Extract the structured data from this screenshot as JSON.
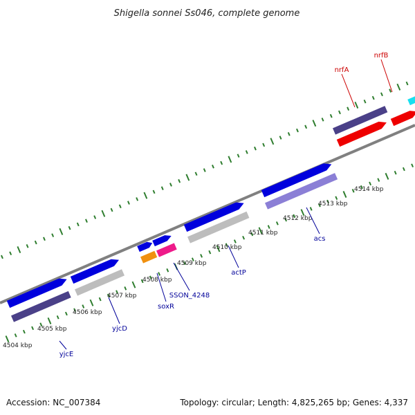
{
  "title": "Shigella sonnei Ss046, complete genome",
  "footer": {
    "accession": "Accession: NC_007384",
    "summary": "Topology: circular; Length: 4,825,265 bp; Genes: 4,337"
  },
  "colors": {
    "backbone": "#808080",
    "tick": "#2e7d2e",
    "label_forward": "#cc0000",
    "label_reverse": "#000099"
  },
  "ticks": [
    {
      "kbp": 4504,
      "label": "4504 kbp"
    },
    {
      "kbp": 4505,
      "label": "4505 kbp"
    },
    {
      "kbp": 4506,
      "label": "4506 kbp"
    },
    {
      "kbp": 4507,
      "label": "4507 kbp"
    },
    {
      "kbp": 4508,
      "label": "4508 kbp"
    },
    {
      "kbp": 4509,
      "label": "4509 kbp"
    },
    {
      "kbp": 4510,
      "label": "4510 kbp"
    },
    {
      "kbp": 4511,
      "label": "4511 kbp"
    },
    {
      "kbp": 4512,
      "label": "4512 kbp"
    },
    {
      "kbp": 4513,
      "label": "4513 kbp"
    },
    {
      "kbp": 4514,
      "label": "4514 kbp"
    }
  ],
  "genes": [
    {
      "name": "yjcE",
      "label": "yjcE",
      "strand": "reverse",
      "color": "#0000dd",
      "shadow": "#4a4088"
    },
    {
      "name": "yjcD",
      "label": "yjcD",
      "strand": "reverse",
      "color": "#0000dd",
      "shadow": "#bdbdbd"
    },
    {
      "name": "soxR",
      "label": "soxR",
      "strand": "reverse",
      "color": "#0000dd",
      "shadow": "#f0900f"
    },
    {
      "name": "SSON_4248",
      "label": "SSON_4248",
      "strand": "reverse",
      "color": "#0000dd",
      "shadow": "#ee1a8a"
    },
    {
      "name": "actP",
      "label": "actP",
      "strand": "reverse",
      "color": "#0000dd",
      "shadow": "#bdbdbd"
    },
    {
      "name": "acs",
      "label": "acs",
      "strand": "reverse",
      "color": "#0000dd",
      "shadow": "#8b7fd6"
    },
    {
      "name": "nrfA",
      "label": "nrfA",
      "strand": "forward",
      "color": "#ee0000",
      "shadow": "#4a4088"
    },
    {
      "name": "nrfB",
      "label": "nrfB",
      "strand": "forward",
      "color": "#ee0000",
      "shadow": "#ee0000"
    }
  ]
}
